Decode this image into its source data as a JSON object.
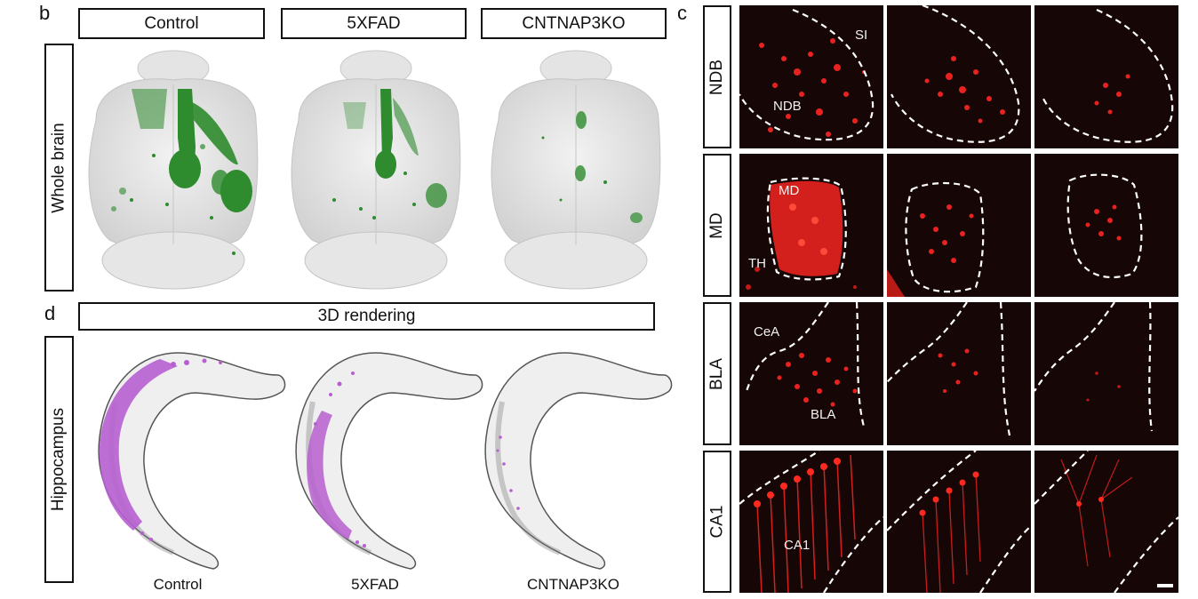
{
  "panel_b": {
    "letter": "b",
    "columns": [
      "Control",
      "5XFAD",
      "CNTNAP3KO"
    ],
    "row_label": "Whole brain",
    "label_color": "#2e8b2e"
  },
  "panel_c": {
    "letter": "c",
    "rows": [
      {
        "label": "NDB",
        "regions": [
          "SI",
          "NDB"
        ]
      },
      {
        "label": "MD",
        "regions": [
          "MD",
          "TH"
        ]
      },
      {
        "label": "BLA",
        "regions": [
          "CeA",
          "BLA"
        ]
      },
      {
        "label": "CA1",
        "regions": [
          "CA1"
        ]
      }
    ],
    "stain_color": "#e8231f"
  },
  "panel_d": {
    "letter": "d",
    "header": "3D rendering",
    "row_label": "Hippocampus",
    "columns": [
      "Control",
      "5XFAD",
      "CNTNAP3KO"
    ],
    "label_color": "#b75fd0"
  }
}
